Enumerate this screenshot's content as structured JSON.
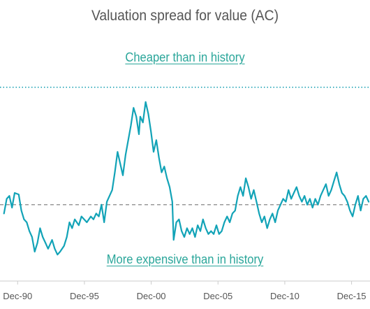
{
  "chart_data": {
    "type": "line",
    "title": "Valuation spread for value (AC)",
    "annotations": {
      "above": "Cheaper than in history",
      "below": "More expensive than in history"
    },
    "xlabel": "",
    "ylabel": "",
    "x_ticks": [
      "Dec-90",
      "Dec-95",
      "Dec-00",
      "Dec-05",
      "Dec-10",
      "Dec-15"
    ],
    "x_range": [
      1989.6,
      2017.3
    ],
    "ylim": [
      -2.6,
      4.4
    ],
    "reference_lines": [
      {
        "name": "historical-average",
        "value": 0.0,
        "style": "dashed",
        "color": "#999999"
      },
      {
        "name": "historical-high",
        "value": 4.0,
        "style": "dotted",
        "color": "#1fa3b5"
      }
    ],
    "series": [
      {
        "color": "#12a3b7",
        "points": [
          [
            1989.9,
            -0.3
          ],
          [
            1990.1,
            0.2
          ],
          [
            1990.3,
            0.3
          ],
          [
            1990.5,
            -0.1
          ],
          [
            1990.7,
            0.4
          ],
          [
            1991.0,
            0.35
          ],
          [
            1991.2,
            -0.2
          ],
          [
            1991.4,
            -0.5
          ],
          [
            1991.6,
            -0.6
          ],
          [
            1991.8,
            -0.9
          ],
          [
            1992.0,
            -1.1
          ],
          [
            1992.2,
            -1.6
          ],
          [
            1992.4,
            -1.3
          ],
          [
            1992.6,
            -0.8
          ],
          [
            1992.8,
            -1.1
          ],
          [
            1993.0,
            -1.3
          ],
          [
            1993.2,
            -1.5
          ],
          [
            1993.5,
            -1.2
          ],
          [
            1993.7,
            -1.5
          ],
          [
            1993.9,
            -1.7
          ],
          [
            1994.1,
            -1.6
          ],
          [
            1994.4,
            -1.4
          ],
          [
            1994.6,
            -1.1
          ],
          [
            1994.8,
            -0.6
          ],
          [
            1995.0,
            -0.8
          ],
          [
            1995.2,
            -0.5
          ],
          [
            1995.5,
            -0.7
          ],
          [
            1995.7,
            -0.4
          ],
          [
            1995.9,
            -0.5
          ],
          [
            1996.1,
            -0.6
          ],
          [
            1996.4,
            -0.4
          ],
          [
            1996.6,
            -0.5
          ],
          [
            1996.8,
            -0.3
          ],
          [
            1997.0,
            -0.4
          ],
          [
            1997.2,
            0.0
          ],
          [
            1997.4,
            -0.6
          ],
          [
            1997.6,
            0.1
          ],
          [
            1997.8,
            0.3
          ],
          [
            1998.0,
            0.5
          ],
          [
            1998.2,
            1.1
          ],
          [
            1998.4,
            1.8
          ],
          [
            1998.6,
            1.4
          ],
          [
            1998.8,
            1.0
          ],
          [
            1999.0,
            1.7
          ],
          [
            1999.2,
            2.2
          ],
          [
            1999.4,
            2.7
          ],
          [
            1999.6,
            3.3
          ],
          [
            1999.8,
            3.0
          ],
          [
            2000.0,
            2.4
          ],
          [
            2000.1,
            3.0
          ],
          [
            2000.3,
            2.8
          ],
          [
            2000.5,
            3.5
          ],
          [
            2000.7,
            3.1
          ],
          [
            2000.9,
            2.5
          ],
          [
            2001.1,
            1.8
          ],
          [
            2001.3,
            2.2
          ],
          [
            2001.5,
            1.6
          ],
          [
            2001.7,
            1.1
          ],
          [
            2001.9,
            1.3
          ],
          [
            2002.1,
            0.9
          ],
          [
            2002.3,
            0.6
          ],
          [
            2002.5,
            0.1
          ],
          [
            2002.6,
            -1.2
          ],
          [
            2002.8,
            -0.6
          ],
          [
            2003.0,
            -0.5
          ],
          [
            2003.2,
            -0.9
          ],
          [
            2003.4,
            -1.1
          ],
          [
            2003.6,
            -0.8
          ],
          [
            2003.8,
            -1.0
          ],
          [
            2004.0,
            -0.8
          ],
          [
            2004.2,
            -1.1
          ],
          [
            2004.4,
            -0.7
          ],
          [
            2004.6,
            -0.9
          ],
          [
            2004.8,
            -0.5
          ],
          [
            2005.0,
            -0.8
          ],
          [
            2005.2,
            -1.0
          ],
          [
            2005.4,
            -0.9
          ],
          [
            2005.6,
            -1.0
          ],
          [
            2005.8,
            -0.7
          ],
          [
            2006.0,
            -1.0
          ],
          [
            2006.2,
            -0.9
          ],
          [
            2006.4,
            -0.6
          ],
          [
            2006.6,
            -0.4
          ],
          [
            2006.8,
            -0.6
          ],
          [
            2007.0,
            -0.3
          ],
          [
            2007.2,
            -0.2
          ],
          [
            2007.4,
            0.3
          ],
          [
            2007.6,
            0.6
          ],
          [
            2007.8,
            0.3
          ],
          [
            2008.0,
            0.9
          ],
          [
            2008.2,
            0.6
          ],
          [
            2008.4,
            0.2
          ],
          [
            2008.6,
            0.5
          ],
          [
            2008.8,
            0.1
          ],
          [
            2009.0,
            -0.3
          ],
          [
            2009.2,
            -0.6
          ],
          [
            2009.4,
            -0.4
          ],
          [
            2009.6,
            -0.8
          ],
          [
            2009.8,
            -0.5
          ],
          [
            2010.0,
            -0.3
          ],
          [
            2010.2,
            -0.6
          ],
          [
            2010.4,
            -0.2
          ],
          [
            2010.6,
            0.0
          ],
          [
            2010.8,
            0.2
          ],
          [
            2011.0,
            0.1
          ],
          [
            2011.2,
            0.5
          ],
          [
            2011.4,
            0.2
          ],
          [
            2011.6,
            0.4
          ],
          [
            2011.8,
            0.6
          ],
          [
            2012.0,
            0.3
          ],
          [
            2012.2,
            0.1
          ],
          [
            2012.4,
            0.3
          ],
          [
            2012.6,
            0.0
          ],
          [
            2012.8,
            0.2
          ],
          [
            2013.0,
            -0.1
          ],
          [
            2013.2,
            0.2
          ],
          [
            2013.4,
            0.0
          ],
          [
            2013.6,
            0.3
          ],
          [
            2013.8,
            0.5
          ],
          [
            2014.0,
            0.7
          ],
          [
            2014.2,
            0.3
          ],
          [
            2014.4,
            0.5
          ],
          [
            2014.6,
            0.8
          ],
          [
            2014.8,
            1.1
          ],
          [
            2015.0,
            0.7
          ],
          [
            2015.2,
            0.4
          ],
          [
            2015.4,
            0.3
          ],
          [
            2015.6,
            0.1
          ],
          [
            2015.8,
            -0.2
          ],
          [
            2016.0,
            -0.4
          ],
          [
            2016.2,
            0.0
          ],
          [
            2016.4,
            0.3
          ],
          [
            2016.6,
            -0.2
          ],
          [
            2016.8,
            0.2
          ],
          [
            2017.0,
            0.3
          ],
          [
            2017.2,
            0.1
          ]
        ]
      }
    ],
    "grid": false,
    "legend": "none"
  }
}
